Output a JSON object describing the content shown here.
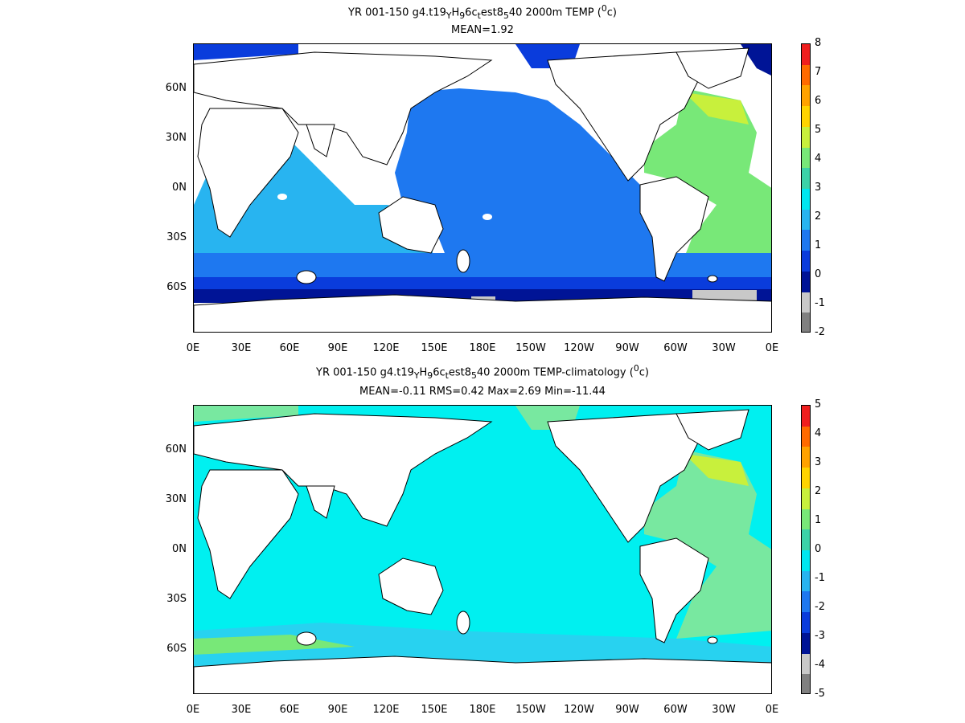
{
  "panels": [
    {
      "title_prefix": "YR 001-150 g4.t19",
      "title_sub1": "Y",
      "title_mid1": "H",
      "title_sub2": "9",
      "title_mid2": "6c",
      "title_sub3": "t",
      "title_mid3": "est8",
      "title_sub4": "5",
      "title_suffix": "40 2000m TEMP (",
      "title_sup": "0",
      "title_end": "c)",
      "stats": "MEAN=1.92",
      "colorbar_labels": [
        "8",
        "7",
        "6",
        "5",
        "4",
        "3",
        "2",
        "1",
        "0",
        "-1",
        "-2"
      ],
      "colorbar_colors": [
        "#f01e1e",
        "#ff6a00",
        "#ffa200",
        "#ffd400",
        "#c8f03c",
        "#78e878",
        "#3cd2a8",
        "#00e6f0",
        "#28b4f0",
        "#1e78f0",
        "#0a3cdc",
        "#001496",
        "#c8c8c8",
        "#808080"
      ]
    },
    {
      "title_prefix": "YR 001-150 g4.t19",
      "title_sub1": "Y",
      "title_mid1": "H",
      "title_sub2": "9",
      "title_mid2": "6c",
      "title_sub3": "t",
      "title_mid3": "est8",
      "title_sub4": "5",
      "title_suffix": "40 2000m TEMP-climatology (",
      "title_sup": "0",
      "title_end": "c)",
      "stats": "MEAN=-0.11   RMS=0.42   Max=2.69   Min=-11.44",
      "colorbar_labels": [
        "5",
        "4",
        "3",
        "2",
        "1",
        "0",
        "-1",
        "-2",
        "-3",
        "-4",
        "-5"
      ],
      "colorbar_colors": [
        "#f01e1e",
        "#ff6a00",
        "#ffa200",
        "#ffd400",
        "#c8f03c",
        "#78e878",
        "#3cd2a8",
        "#00e6f0",
        "#28b4f0",
        "#1e78f0",
        "#0a3cdc",
        "#001496",
        "#c8c8c8",
        "#808080"
      ]
    }
  ],
  "x_ticks": [
    "0E",
    "30E",
    "60E",
    "90E",
    "120E",
    "150E",
    "180E",
    "150W",
    "120W",
    "90W",
    "60W",
    "30W",
    "0E"
  ],
  "y_ticks": [
    "60N",
    "30N",
    "0N",
    "30S",
    "60S"
  ],
  "colors": {
    "land": "#ffffff",
    "coast": "#000000",
    "p1_deep_pacific": "#1e78f0",
    "p1_atlantic": "#78e878",
    "p1_indian": "#28b4f0",
    "p1_southern": "#0a3cdc",
    "p1_antarctic": "#001496",
    "p2_ocean": "#00f0f0",
    "p2_atlantic": "#78e8a0",
    "p2_southern": "#28d2f0"
  }
}
